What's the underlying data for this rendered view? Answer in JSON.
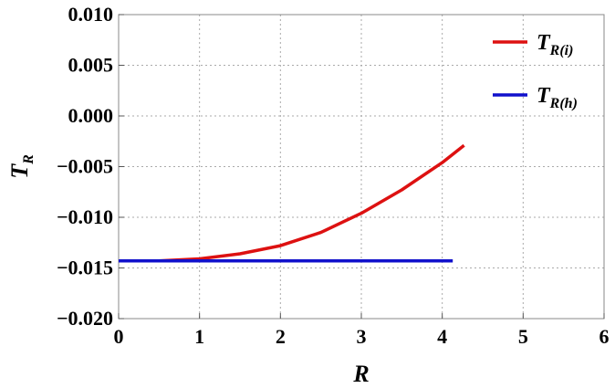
{
  "chart_data": {
    "type": "line",
    "xlabel": "R",
    "ylabel": {
      "main": "T",
      "sub": "R"
    },
    "xlim": [
      0,
      6
    ],
    "ylim": [
      -0.02,
      0.01
    ],
    "xticks": [
      "0",
      "1",
      "2",
      "3",
      "4",
      "5",
      "6"
    ],
    "yticks": [
      "0.010",
      "0.005",
      "0.000",
      "−0.005",
      "−0.010",
      "−0.015",
      "−0.020"
    ],
    "grid": true,
    "legend_position": "top-right",
    "series": [
      {
        "name": {
          "main": "T",
          "sub": "R(i)"
        },
        "color": "#dd1111",
        "x": [
          0,
          0.5,
          1.0,
          1.5,
          2.0,
          2.5,
          3.0,
          3.5,
          4.0,
          4.27
        ],
        "y": [
          -0.0143,
          -0.0143,
          -0.0141,
          -0.0136,
          -0.0128,
          -0.0115,
          -0.0096,
          -0.0073,
          -0.0046,
          -0.0029
        ]
      },
      {
        "name": {
          "main": "T",
          "sub": "R(h)"
        },
        "color": "#1111cc",
        "x": [
          0,
          4.13
        ],
        "y": [
          -0.0143,
          -0.0143
        ]
      }
    ]
  }
}
